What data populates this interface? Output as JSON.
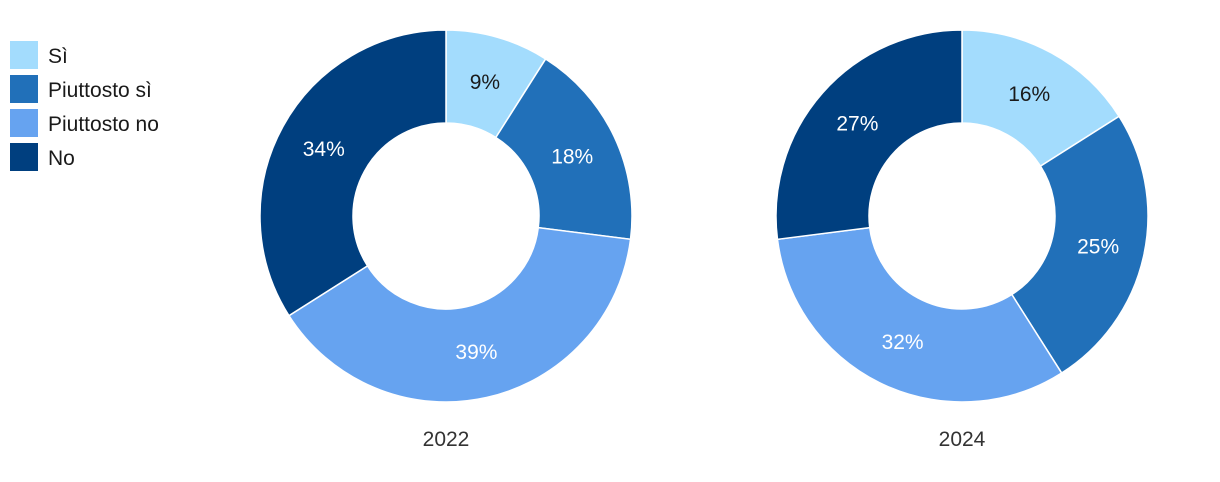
{
  "chart_data": [
    {
      "type": "pie",
      "title": "2022",
      "categories": [
        "Sì",
        "Piuttosto sì",
        "Piuttosto no",
        "No"
      ],
      "values": [
        9,
        18,
        39,
        34
      ],
      "labels": [
        "9%",
        "18%",
        "39%",
        "34%"
      ]
    },
    {
      "type": "pie",
      "title": "2024",
      "categories": [
        "Sì",
        "Piuttosto sì",
        "Piuttosto no",
        "No"
      ],
      "values": [
        16,
        25,
        32,
        27
      ],
      "labels": [
        "16%",
        "25%",
        "32%",
        "27%"
      ]
    }
  ],
  "legend": {
    "placement": "top-left",
    "items": [
      {
        "label": "Sì",
        "color": "#a3dcfd"
      },
      {
        "label": "Piuttosto sì",
        "color": "#2170b9"
      },
      {
        "label": "Piuttosto no",
        "color": "#66a3f0"
      },
      {
        "label": "No",
        "color": "#003f7f"
      }
    ]
  },
  "label_colors": [
    "#1a1a1a",
    "#ffffff",
    "#ffffff",
    "#ffffff"
  ]
}
